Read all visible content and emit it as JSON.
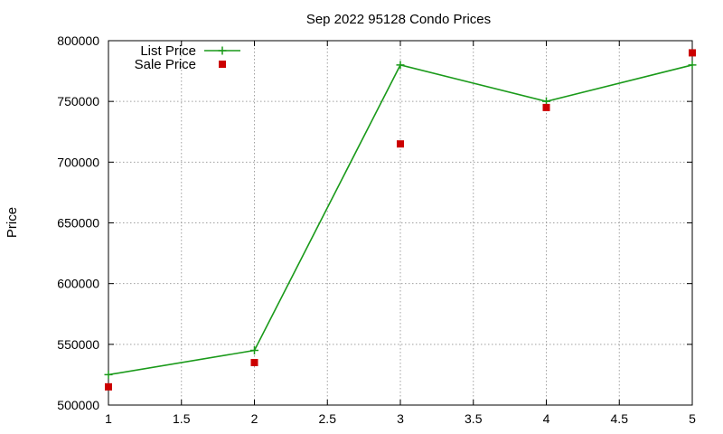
{
  "chart_data": {
    "type": "line",
    "title": "Sep 2022 95128 Condo Prices",
    "xlabel": "",
    "ylabel": "Price",
    "xlim": [
      1,
      5
    ],
    "ylim": [
      500000,
      800000
    ],
    "x_ticks": [
      "1",
      "1.5",
      "2",
      "2.5",
      "3",
      "3.5",
      "4",
      "4.5",
      "5"
    ],
    "y_ticks": [
      "500000",
      "550000",
      "600000",
      "650000",
      "700000",
      "750000",
      "800000"
    ],
    "grid": true,
    "legend_position": "top-left",
    "series": [
      {
        "name": "List Price",
        "style": "linespoints",
        "marker": "plus",
        "color": "#1a9a1a",
        "x": [
          1,
          2,
          3,
          4,
          5
        ],
        "values": [
          525000,
          545000,
          780000,
          750000,
          780000
        ]
      },
      {
        "name": "Sale Price",
        "style": "points",
        "marker": "square",
        "color": "#cc0000",
        "x": [
          1,
          2,
          3,
          4,
          5
        ],
        "values": [
          515000,
          535000,
          715000,
          745000,
          790000
        ]
      }
    ]
  }
}
